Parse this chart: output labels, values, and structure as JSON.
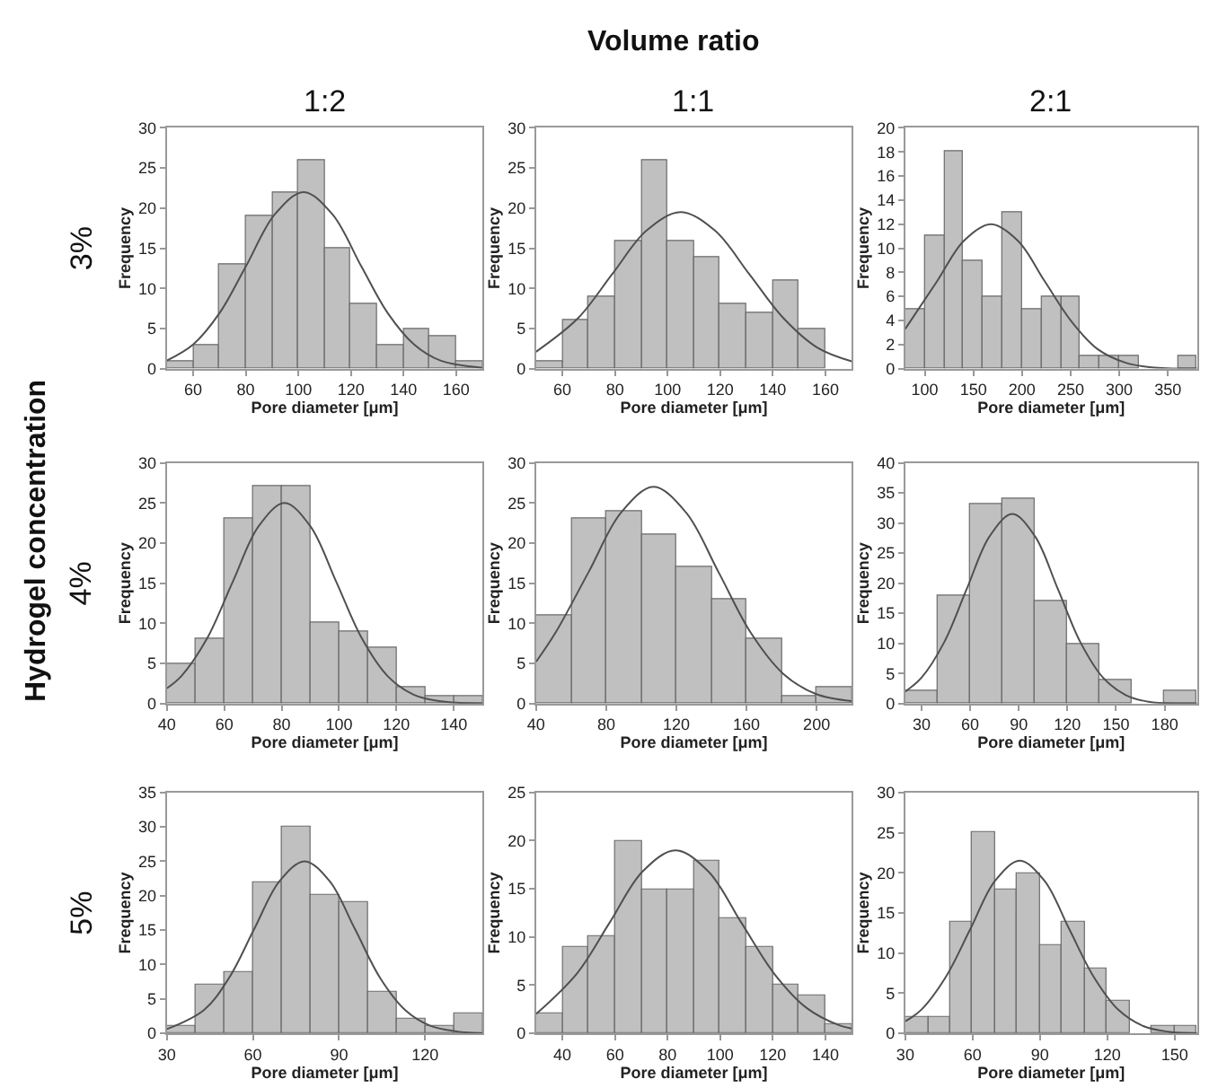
{
  "chart_data": [
    {
      "type": "histogram",
      "title": "1:2",
      "xlabel": "Pore diameter [μm]",
      "ylabel": "Frequency",
      "annotations": [
        "Volume ratio",
        "Hydrogel concentration",
        "3%"
      ],
      "color": "#c0c0c0",
      "bins": [
        50,
        60,
        70,
        80,
        90,
        100,
        110,
        120,
        130,
        140,
        150,
        160,
        170
      ],
      "values": [
        1,
        3,
        13,
        19,
        22,
        26,
        15,
        8,
        3,
        5,
        4,
        1
      ],
      "xlim": [
        50,
        170
      ],
      "xticks": [
        60,
        80,
        100,
        120,
        140,
        160
      ],
      "ylim": [
        0,
        30
      ],
      "yticks": [
        0,
        5,
        10,
        15,
        20,
        25,
        30
      ],
      "series": [
        {
          "type": "line",
          "color": "#505050",
          "x": [
            50,
            60,
            70,
            80,
            91,
            102,
            113,
            124,
            134,
            144,
            154,
            170
          ],
          "values": [
            1.0,
            3.0,
            6.9,
            12.7,
            19.2,
            22,
            19.2,
            12.7,
            6.9,
            3.0,
            1.0,
            0.1
          ]
        }
      ]
    },
    {
      "type": "histogram",
      "title": "1:1",
      "xlabel": "Pore diameter [μm]",
      "ylabel": "Frequency",
      "color": "#c0c0c0",
      "bins": [
        50,
        60,
        70,
        80,
        90,
        100,
        110,
        120,
        130,
        140,
        150,
        160
      ],
      "values": [
        1,
        6,
        9,
        16,
        26,
        16,
        14,
        8,
        7,
        11,
        5
      ],
      "xlim": [
        50,
        170
      ],
      "xticks": [
        60,
        80,
        100,
        120,
        140,
        160
      ],
      "ylim": [
        0,
        30
      ],
      "yticks": [
        0,
        5,
        10,
        15,
        20,
        25,
        30
      ],
      "series": [
        {
          "type": "line",
          "color": "#505050",
          "x": [
            50,
            66,
            79,
            92,
            105,
            118,
            131,
            144,
            157,
            170
          ],
          "values": [
            2.1,
            6.3,
            11.8,
            17.2,
            19.5,
            17.2,
            11.8,
            6.3,
            2.6,
            0.9
          ]
        }
      ]
    },
    {
      "type": "histogram",
      "title": "2:1",
      "xlabel": "Pore diameter [μm]",
      "ylabel": "Frequency",
      "color": "#c0c0c0",
      "bins": [
        80,
        100,
        120,
        140,
        160,
        180,
        200,
        220,
        240,
        260,
        280,
        300,
        320,
        340,
        360,
        380
      ],
      "values": [
        5,
        11,
        18,
        9,
        6,
        13,
        5,
        6,
        6,
        1,
        1,
        1,
        0,
        0,
        1
      ],
      "xlim": [
        80,
        380
      ],
      "xticks": [
        100,
        150,
        200,
        250,
        300,
        350
      ],
      "ylim": [
        0,
        20
      ],
      "yticks": [
        0,
        2,
        4,
        6,
        8,
        10,
        12,
        14,
        16,
        18,
        20
      ],
      "series": [
        {
          "type": "line",
          "color": "#505050",
          "x": [
            80,
            113,
            140,
            168,
            196,
            223,
            251,
            278,
            306,
            333,
            380
          ],
          "values": [
            3.3,
            7.3,
            10.6,
            12,
            10.6,
            7.3,
            3.9,
            1.6,
            0.5,
            0.1,
            0
          ]
        }
      ]
    },
    {
      "type": "histogram",
      "xlabel": "Pore diameter [μm]",
      "ylabel": "Frequency",
      "annotations": [
        "4%"
      ],
      "color": "#c0c0c0",
      "bins": [
        40,
        50,
        60,
        70,
        80,
        90,
        100,
        110,
        120,
        130,
        140,
        150
      ],
      "values": [
        5,
        8,
        23,
        27,
        27,
        10,
        9,
        7,
        2,
        1,
        1
      ],
      "xlim": [
        40,
        150
      ],
      "xticks": [
        40,
        60,
        80,
        100,
        120,
        140
      ],
      "ylim": [
        0,
        30
      ],
      "yticks": [
        0,
        5,
        10,
        15,
        20,
        25,
        30
      ],
      "series": [
        {
          "type": "line",
          "color": "#505050",
          "x": [
            40,
            45,
            54,
            63,
            72,
            81,
            90,
            99,
            108,
            117,
            126,
            135,
            150
          ],
          "values": [
            1.9,
            3.4,
            8.1,
            15.2,
            22.1,
            25,
            22.1,
            15.2,
            8.1,
            3.4,
            1.1,
            0.3,
            0
          ]
        }
      ]
    },
    {
      "type": "histogram",
      "xlabel": "Pore diameter [μm]",
      "ylabel": "Frequency",
      "color": "#c0c0c0",
      "bins": [
        40,
        60,
        80,
        100,
        120,
        140,
        160,
        180,
        200,
        220
      ],
      "values": [
        11,
        23,
        24,
        21,
        17,
        13,
        8,
        1,
        2
      ],
      "xlim": [
        40,
        220
      ],
      "xticks": [
        40,
        80,
        120,
        160,
        200
      ],
      "ylim": [
        0,
        30
      ],
      "yticks": [
        0,
        5,
        10,
        15,
        20,
        25,
        30
      ],
      "series": [
        {
          "type": "line",
          "color": "#505050",
          "x": [
            40,
            51,
            70,
            88.5,
            107,
            125.5,
            144,
            162.5,
            181,
            199.5,
            220
          ],
          "values": [
            5.2,
            8.8,
            16.4,
            23.8,
            27,
            23.8,
            16.4,
            8.8,
            3.7,
            1.2,
            0.3
          ]
        }
      ]
    },
    {
      "type": "histogram",
      "xlabel": "Pore diameter [μm]",
      "ylabel": "Frequency",
      "color": "#c0c0c0",
      "bins": [
        20,
        40,
        60,
        80,
        100,
        120,
        140,
        160,
        180,
        200
      ],
      "values": [
        2,
        18,
        33,
        34,
        17,
        10,
        4,
        0,
        2
      ],
      "xlim": [
        20,
        200
      ],
      "xticks": [
        30,
        60,
        90,
        120,
        150,
        180
      ],
      "ylim": [
        0,
        40
      ],
      "yticks": [
        0,
        5,
        10,
        15,
        20,
        25,
        30,
        35,
        40
      ],
      "series": [
        {
          "type": "line",
          "color": "#505050",
          "x": [
            20,
            30,
            44,
            58,
            72,
            86,
            100,
            114,
            128,
            142,
            156,
            170,
            200
          ],
          "values": [
            2.0,
            4.3,
            10.2,
            19.1,
            27.8,
            31.5,
            27.8,
            19.1,
            10.2,
            4.3,
            1.4,
            0.3,
            0
          ]
        }
      ]
    },
    {
      "type": "histogram",
      "xlabel": "Pore diameter [μm]",
      "ylabel": "Frequency",
      "annotations": [
        "5%"
      ],
      "color": "#c0c0c0",
      "bins": [
        30,
        40,
        50,
        60,
        70,
        80,
        90,
        100,
        110,
        120,
        130,
        140
      ],
      "values": [
        1,
        7,
        9,
        22,
        30,
        20,
        19,
        6,
        2,
        1,
        3
      ],
      "xlim": [
        30,
        140
      ],
      "xticks": [
        30,
        60,
        90,
        120
      ],
      "ylim": [
        0,
        35
      ],
      "yticks": [
        0,
        5,
        10,
        15,
        20,
        25,
        30,
        35
      ],
      "series": [
        {
          "type": "line",
          "color": "#505050",
          "x": [
            30,
            43,
            51.75,
            60.5,
            69.25,
            78,
            86.75,
            95.5,
            104.25,
            113,
            121.75,
            130.5,
            140
          ],
          "values": [
            0.6,
            3.4,
            8.1,
            15.2,
            22.1,
            25,
            22.1,
            15.2,
            8.1,
            3.4,
            1.1,
            0.3,
            0
          ]
        }
      ]
    },
    {
      "type": "histogram",
      "xlabel": "Pore diameter [μm]",
      "ylabel": "Frequency",
      "color": "#c0c0c0",
      "bins": [
        30,
        40,
        50,
        60,
        70,
        80,
        90,
        100,
        110,
        120,
        130,
        140,
        150
      ],
      "values": [
        2,
        9,
        10,
        20,
        15,
        15,
        18,
        12,
        9,
        5,
        4,
        1
      ],
      "xlim": [
        30,
        150
      ],
      "xticks": [
        40,
        60,
        80,
        100,
        120,
        140
      ],
      "ylim": [
        0,
        25
      ],
      "yticks": [
        0,
        5,
        10,
        15,
        20,
        25
      ],
      "series": [
        {
          "type": "line",
          "color": "#505050",
          "x": [
            30,
            45.5,
            58,
            70.5,
            83,
            95.5,
            108,
            120.5,
            133,
            145.5,
            150
          ],
          "values": [
            2.0,
            6.2,
            11.5,
            16.8,
            19,
            16.8,
            11.5,
            6.2,
            2.6,
            0.8,
            0.5
          ]
        }
      ]
    },
    {
      "type": "histogram",
      "xlabel": "Pore diameter [μm]",
      "ylabel": "Frequency",
      "color": "#c0c0c0",
      "bins": [
        30,
        40,
        50,
        60,
        70,
        80,
        90,
        100,
        110,
        120,
        130,
        140,
        150,
        160
      ],
      "values": [
        2,
        2,
        14,
        25,
        18,
        20,
        11,
        14,
        8,
        4,
        0,
        1,
        1
      ],
      "xlim": [
        30,
        160
      ],
      "xticks": [
        30,
        60,
        90,
        120,
        150
      ],
      "ylim": [
        0,
        30
      ],
      "yticks": [
        0,
        5,
        10,
        15,
        20,
        25,
        30
      ],
      "series": [
        {
          "type": "line",
          "color": "#505050",
          "x": [
            30,
            37,
            48,
            59,
            70,
            81,
            92,
            103,
            114,
            125,
            136,
            147,
            160
          ],
          "values": [
            1.5,
            2.9,
            7.0,
            13.0,
            19.0,
            21.5,
            19.0,
            13.0,
            7.0,
            2.9,
            0.9,
            0.2,
            0
          ]
        }
      ]
    }
  ]
}
